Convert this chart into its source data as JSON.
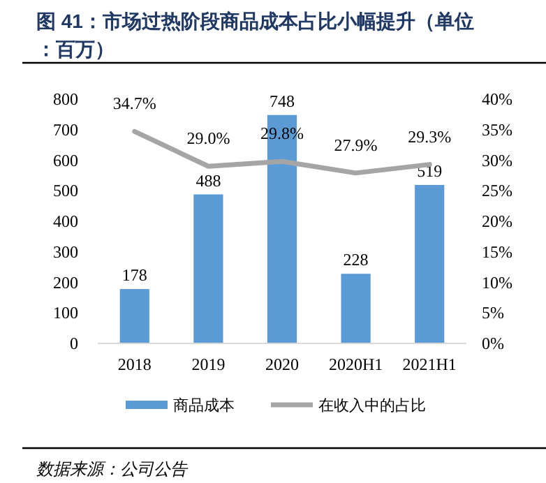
{
  "chart_data": {
    "type": "bar",
    "title": "图 41：市场过热阶段商品成本占比小幅提升（单位：百万）",
    "categories": [
      "2018",
      "2019",
      "2020",
      "2020H1",
      "2021H1"
    ],
    "series": [
      {
        "name": "商品成本",
        "color": "#5b9bd5",
        "values": [
          178,
          488,
          748,
          228,
          519
        ],
        "value_labels": [
          "178",
          "488",
          "748",
          "228",
          "519"
        ]
      },
      {
        "name": "在收入中的占比",
        "type": "line",
        "axis": "y2",
        "color": "#a5a5a5",
        "values": [
          34.7,
          29.0,
          29.8,
          27.9,
          29.3
        ],
        "value_labels": [
          "34.7%",
          "29.0%",
          "29.8%",
          "27.9%",
          "29.3%"
        ]
      }
    ],
    "ylim": [
      0,
      800
    ],
    "yticks": [
      0,
      100,
      200,
      300,
      400,
      500,
      600,
      700,
      800
    ],
    "y2lim": [
      0,
      40
    ],
    "y2ticks": [
      {
        "value": 0,
        "label": "0%"
      },
      {
        "value": 5,
        "label": "5%"
      },
      {
        "value": 10,
        "label": "10%"
      },
      {
        "value": 15,
        "label": "15%"
      },
      {
        "value": 20,
        "label": "20%"
      },
      {
        "value": 25,
        "label": "25%"
      },
      {
        "value": 30,
        "label": "30%"
      },
      {
        "value": 35,
        "label": "35%"
      },
      {
        "value": 40,
        "label": "40%"
      }
    ],
    "legend": "bottom",
    "grid": false,
    "annotations": [
      "数据来源：公司公告"
    ]
  }
}
